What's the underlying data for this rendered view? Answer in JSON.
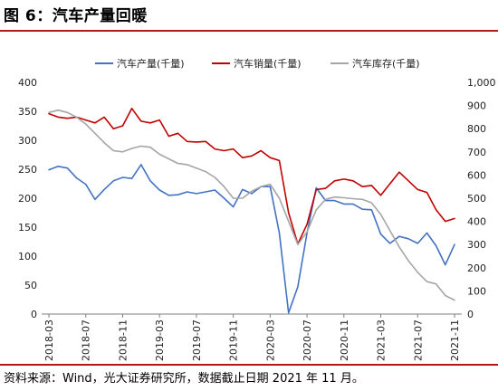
{
  "figure": {
    "title": "图 6：汽车产量回暖",
    "source": "资料来源：Wind，光大证券研究所，数据截止日期 2021 年 11 月。"
  },
  "colors": {
    "production": "#4472c4",
    "sales": "#c00000",
    "inventory": "#a6a6a6",
    "rule": "#b31b1b"
  },
  "chart_data": {
    "type": "line",
    "title": "",
    "xlabel": "",
    "ylabel": "",
    "grid": false,
    "legend_position": "top",
    "x": [
      "2018-03",
      "2018-04",
      "2018-05",
      "2018-06",
      "2018-07",
      "2018-08",
      "2018-09",
      "2018-10",
      "2018-11",
      "2018-12",
      "2019-01",
      "2019-02",
      "2019-03",
      "2019-04",
      "2019-05",
      "2019-06",
      "2019-07",
      "2019-08",
      "2019-09",
      "2019-10",
      "2019-11",
      "2019-12",
      "2020-01",
      "2020-02",
      "2020-03",
      "2020-04",
      "2020-05",
      "2020-06",
      "2020-07",
      "2020-08",
      "2020-09",
      "2020-10",
      "2020-11",
      "2020-12",
      "2021-01",
      "2021-02",
      "2021-03",
      "2021-04",
      "2021-05",
      "2021-06",
      "2021-07",
      "2021-08",
      "2021-09",
      "2021-10",
      "2021-11"
    ],
    "x_tick_labels": [
      "2018-03",
      "2018-07",
      "2018-11",
      "2019-03",
      "2019-07",
      "2019-11",
      "2020-03",
      "2020-07",
      "2020-11",
      "2021-03",
      "2021-07",
      "2021-11"
    ],
    "y_left": {
      "min": 0,
      "max": 400,
      "ticks": [
        0,
        50,
        100,
        150,
        200,
        250,
        300,
        350,
        400
      ]
    },
    "y_right": {
      "min": 0,
      "max": 1000,
      "ticks": [
        "0",
        "100",
        "200",
        "300",
        "400",
        "500",
        "600",
        "700",
        "800",
        "900",
        "1,000"
      ]
    },
    "series": [
      {
        "name": "汽车产量(千量)",
        "axis": "left",
        "color_key": "production",
        "values": [
          249,
          255,
          252,
          235,
          224,
          198,
          215,
          230,
          236,
          234,
          258,
          230,
          214,
          205,
          206,
          211,
          208,
          211,
          214,
          200,
          185,
          215,
          208,
          220,
          220,
          140,
          2,
          47,
          140,
          218,
          196,
          196,
          190,
          190,
          181,
          180,
          138,
          122,
          134,
          130,
          122,
          140,
          118,
          85,
          120
        ]
      },
      {
        "name": "汽车销量(千量)",
        "axis": "left",
        "color_key": "sales",
        "values": [
          346,
          340,
          338,
          340,
          335,
          330,
          340,
          320,
          325,
          355,
          333,
          330,
          335,
          307,
          312,
          298,
          297,
          298,
          285,
          282,
          285,
          270,
          273,
          282,
          270,
          265,
          175,
          121,
          155,
          215,
          217,
          230,
          233,
          230,
          220,
          222,
          205,
          225,
          245,
          230,
          215,
          210,
          180,
          160,
          165
        ]
      },
      {
        "name": "汽车库存(千量)",
        "axis": "right",
        "color_key": "inventory",
        "values": [
          870,
          880,
          870,
          850,
          820,
          780,
          740,
          705,
          700,
          715,
          725,
          720,
          690,
          670,
          650,
          645,
          630,
          615,
          590,
          550,
          500,
          500,
          530,
          550,
          560,
          500,
          400,
          300,
          355,
          450,
          495,
          505,
          502,
          498,
          495,
          480,
          430,
          360,
          290,
          230,
          180,
          140,
          130,
          80,
          60
        ]
      }
    ]
  }
}
